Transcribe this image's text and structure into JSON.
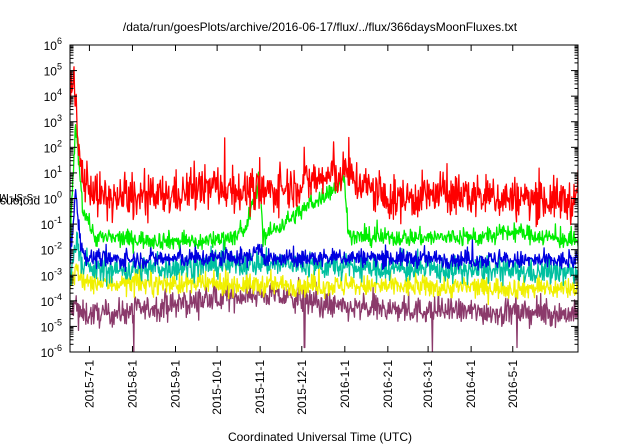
{
  "chart_data": {
    "type": "line",
    "title": "/data/run/goesPlots/archive/2016-06-17/flux/../flux/366daysMoonFluxes.txt",
    "xlabel": "Coordinated Universal Time (UTC)",
    "ylabel_parts": [
      "protons/cm",
      "2",
      "-s-sr-MeV"
    ],
    "x_range": [
      "2015-06-17",
      "2016-06-17"
    ],
    "ylim": [
      1e-06,
      1000000.0
    ],
    "y_scale": "log",
    "grid": false,
    "legend": "none",
    "x_ticks": [
      {
        "date": "2015-07-01",
        "label": "2015-7-1"
      },
      {
        "date": "2015-08-01",
        "label": "2015-8-1"
      },
      {
        "date": "2015-09-01",
        "label": "2015-9-1"
      },
      {
        "date": "2015-10-01",
        "label": "2015-10-1"
      },
      {
        "date": "2015-11-01",
        "label": "2015-11-1"
      },
      {
        "date": "2015-12-01",
        "label": "2015-12-1"
      },
      {
        "date": "2016-01-01",
        "label": "2016-1-1"
      },
      {
        "date": "2016-02-01",
        "label": "2016-2-1"
      },
      {
        "date": "2016-03-01",
        "label": "2016-3-1"
      },
      {
        "date": "2016-04-01",
        "label": "2016-4-1"
      },
      {
        "date": "2016-05-01",
        "label": "2016-5-1"
      }
    ],
    "y_ticks": [
      {
        "exp": -6,
        "label": "10",
        "sup": "-6"
      },
      {
        "exp": -5,
        "label": "10",
        "sup": "-5"
      },
      {
        "exp": -4,
        "label": "10",
        "sup": "-4"
      },
      {
        "exp": -3,
        "label": "10",
        "sup": "-3"
      },
      {
        "exp": -2,
        "label": "10",
        "sup": "-2"
      },
      {
        "exp": -1,
        "label": "10",
        "sup": "-1"
      },
      {
        "exp": 0,
        "label": "10",
        "sup": "0"
      },
      {
        "exp": 1,
        "label": "10",
        "sup": "1"
      },
      {
        "exp": 2,
        "label": "10",
        "sup": "2"
      },
      {
        "exp": 3,
        "label": "10",
        "sup": "3"
      },
      {
        "exp": 4,
        "label": "10",
        "sup": "4"
      },
      {
        "exp": 5,
        "label": "10",
        "sup": "5"
      },
      {
        "exp": 6,
        "label": "10",
        "sup": "6"
      }
    ],
    "series": [
      {
        "color": "#8b3a6b",
        "baseline": 3e-05,
        "spread": 0.35,
        "peak": 0.003,
        "points": [
          [
            "2015-06-17",
            3e-05
          ],
          [
            "2015-06-20",
            5e-05
          ],
          [
            "2015-06-22",
            0.0001
          ],
          [
            "2015-06-24",
            3e-05
          ],
          [
            "2015-07-15",
            3e-05
          ],
          [
            "2015-11-01",
            0.0002
          ],
          [
            "2016-01-01",
            5e-05
          ],
          [
            "2016-06-17",
            3e-05
          ]
        ],
        "dips": [
          [
            "2015-06-23",
            7e-06
          ],
          [
            "2015-08-02",
            1e-06
          ],
          [
            "2015-11-01",
            0.0003
          ],
          [
            "2015-12-03",
            1.5e-06
          ],
          [
            "2016-03-04",
            1e-06
          ],
          [
            "2016-04-23",
            1e-05
          ],
          [
            "2016-05-04",
            1.5e-06
          ]
        ]
      },
      {
        "color": "#f0f000",
        "baseline": 0.0003,
        "spread": 0.3,
        "peak": 0.01,
        "points": [
          [
            "2015-06-17",
            0.0003
          ],
          [
            "2015-06-22",
            0.002
          ],
          [
            "2015-06-25",
            0.0005
          ],
          [
            "2016-06-17",
            0.0003
          ]
        ]
      },
      {
        "color": "#00c0a0",
        "baseline": 0.0012,
        "spread": 0.35,
        "peak": 0.03,
        "points": [
          [
            "2015-06-17",
            0.001
          ],
          [
            "2015-06-22",
            0.03
          ],
          [
            "2015-06-26",
            0.002
          ],
          [
            "2015-07-10",
            0.0015
          ],
          [
            "2015-11-02",
            0.003
          ],
          [
            "2016-01-01",
            0.002
          ],
          [
            "2016-06-17",
            0.0012
          ]
        ]
      },
      {
        "color": "#0000e0",
        "baseline": 0.0035,
        "spread": 0.25,
        "peak": 10,
        "points": [
          [
            "2015-06-17",
            0.003
          ],
          [
            "2015-06-21",
            2
          ],
          [
            "2015-06-24",
            0.03
          ],
          [
            "2015-06-28",
            0.005
          ],
          [
            "2015-07-15",
            0.004
          ],
          [
            "2015-10-25",
            0.005
          ],
          [
            "2015-11-01",
            0.015
          ],
          [
            "2015-11-05",
            0.004
          ],
          [
            "2016-01-01",
            0.005
          ],
          [
            "2016-06-17",
            0.0035
          ]
        ]
      },
      {
        "color": "#00ee00",
        "baseline": 0.02,
        "spread": 0.25,
        "peak": 1000,
        "points": [
          [
            "2015-06-17",
            0.02
          ],
          [
            "2015-06-21",
            800
          ],
          [
            "2015-06-23",
            50
          ],
          [
            "2015-06-26",
            0.5
          ],
          [
            "2015-07-05",
            0.03
          ],
          [
            "2015-09-20",
            0.02
          ],
          [
            "2015-10-20",
            0.04
          ],
          [
            "2015-11-01",
            5
          ],
          [
            "2015-11-03",
            0.03
          ],
          [
            "2016-01-01",
            5
          ],
          [
            "2016-01-04",
            0.03
          ],
          [
            "2016-04-10",
            0.03
          ],
          [
            "2016-05-01",
            0.05
          ],
          [
            "2016-06-17",
            0.02
          ]
        ]
      },
      {
        "color": "#ff0000",
        "baseline": 1.5,
        "spread": 0.6,
        "peak": 10000.0,
        "points": [
          [
            "2015-06-17",
            10000.0
          ],
          [
            "2015-06-21",
            10000.0
          ],
          [
            "2015-06-23",
            50
          ],
          [
            "2015-06-28",
            5
          ],
          [
            "2015-07-10",
            1
          ],
          [
            "2015-08-15",
            1
          ],
          [
            "2015-10-01",
            3
          ],
          [
            "2015-11-01",
            1.5
          ],
          [
            "2015-12-10",
            5
          ],
          [
            "2016-01-01",
            10
          ],
          [
            "2016-02-01",
            0.8
          ],
          [
            "2016-03-10",
            1.5
          ],
          [
            "2016-05-01",
            1
          ],
          [
            "2016-06-17",
            0.8
          ]
        ]
      }
    ]
  }
}
